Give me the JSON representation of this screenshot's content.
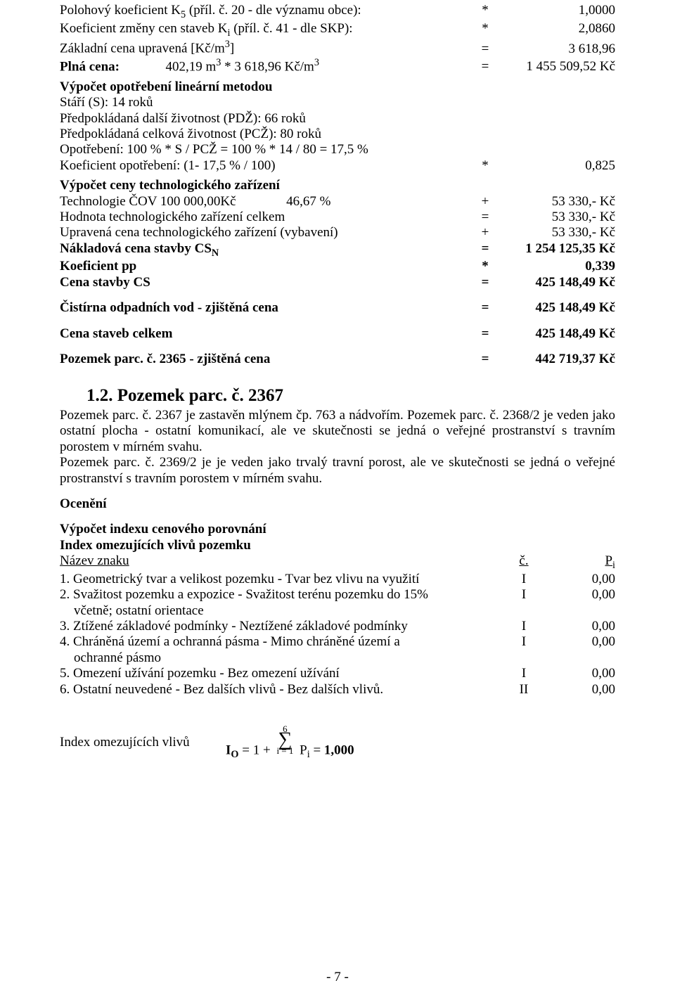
{
  "ln1_left": "Polohový koeficient K",
  "ln1_sub": "5",
  "ln1_left2": " (příl. č. 20 - dle významu obce):",
  "ln1_op": "*",
  "ln1_val": "1,0000",
  "ln2_left": "Koeficient změny cen staveb K",
  "ln2_sub": "i",
  "ln2_left2": " (příl. č. 41 - dle SKP):",
  "ln2_op": "*",
  "ln2_val": "2,0860",
  "ln3_left": "Základní cena upravená [Kč/m",
  "ln3_sup": "3",
  "ln3_left2": "]",
  "ln3_op": "=",
  "ln3_val": "3 618,96",
  "ln4_left_a": "Plná cena:",
  "ln4_left_b": "402,19 m",
  "ln4_sup1": "3",
  "ln4_left_c": " * 3 618,96 Kč/m",
  "ln4_sup2": "3",
  "ln4_op": "=",
  "ln4_val": "1 455 509,52 Kč",
  "sec1_title": "Výpočet opotřebení lineární metodou",
  "s1_l1": "Stáří (S): 14 roků",
  "s1_l2": "Předpokládaná další životnost (PDŽ): 66 roků",
  "s1_l3": "Předpokládaná celková životnost (PCŽ): 80 roků",
  "s1_l4": "Opotřebení: 100 % * S / PCŽ = 100 % * 14 / 80 = 17,5 %",
  "s1_l5_left": "Koeficient opotřebení: (1- 17,5 % / 100)",
  "s1_l5_op": "*",
  "s1_l5_val": "0,825",
  "sec2_title": "Výpočet ceny technologického zařízení",
  "s2_r1_a": "Technologie ČOV   100 000,00Kč",
  "s2_r1_b": "46,67 %",
  "s2_r1_op": "+",
  "s2_r1_val": "53 330,- Kč",
  "s2_r2_left": "Hodnota technologického zařízení celkem",
  "s2_r2_op": "=",
  "s2_r2_val": "53 330,- Kč",
  "s2_r3_left": "Upravená cena technologického zařízení (vybavení)",
  "s2_r3_op": "+",
  "s2_r3_val": "53 330,- Kč",
  "s2_r4_left_a": "Nákladová cena stavby CS",
  "s2_r4_sub": "N",
  "s2_r4_op": "=",
  "s2_r4_val": "1 254 125,35 Kč",
  "s2_r5_left": "Koeficient pp",
  "s2_r5_op": "*",
  "s2_r5_val": "0,339",
  "s2_r6_left": "Cena stavby CS",
  "s2_r6_op": "=",
  "s2_r6_val": "425 148,49 Kč",
  "s2_r7_left": "Čistírna odpadních vod - zjištěná cena",
  "s2_r7_op": "=",
  "s2_r7_val": "425 148,49 Kč",
  "s2_r8_left": "Cena staveb celkem",
  "s2_r8_op": "=",
  "s2_r8_val": "425 148,49 Kč",
  "s2_r9_left": "Pozemek parc. č. 2365 - zjištěná cena",
  "s2_r9_op": "=",
  "s2_r9_val": "442 719,37 Kč",
  "h2_title": "1.2. Pozemek parc. č. 2367",
  "para1": "Pozemek parc. č. 2367 je zastavěn mlýnem čp. 763 a nádvořím. Pozemek parc. č. 2368/2 je veden jako ostatní plocha - ostatní komunikací, ale ve skutečnosti se jedná o veřejné prostranství s travním porostem v mírném svahu.",
  "para2": "Pozemek parc. č. 2369/2 je je veden jako trvalý travní porost, ale ve skutečnosti se jedná o veřejné prostranství s travním porostem v mírném svahu.",
  "oceneni": "Ocenění",
  "idx_title": "Výpočet indexu cenového porovnání",
  "idx_sub": "Index omezujících vlivů pozemku",
  "idx_h_left": "Název znaku",
  "idx_h_mid": "č.",
  "idx_h_val_a": "P",
  "idx_h_val_sub": "i",
  "idx_rows": [
    {
      "l": "1. Geometrický tvar a velikost pozemku - Tvar bez vlivu na využití",
      "m": "I",
      "v": "0,00"
    },
    {
      "l": "2. Svažitost pozemku a expozice - Svažitost terénu pozemku do 15%\n    včetně; ostatní orientace",
      "m": "I",
      "v": "0,00"
    },
    {
      "l": "3. Ztížené základové podmínky - Neztížené základové podmínky",
      "m": "I",
      "v": "0,00"
    },
    {
      "l": "4. Chráněná území a ochranná pásma - Mimo chráněné území a\n    ochranné pásmo",
      "m": "I",
      "v": "0,00"
    },
    {
      "l": "5. Omezení užívání pozemku - Bez omezení užívání",
      "m": "I",
      "v": "0,00"
    },
    {
      "l": "6. Ostatní neuvedené - Bez dalších vlivů - Bez dalších vlivů.",
      "m": "II",
      "v": "0,00"
    }
  ],
  "formula_label": "Index omezujících vlivů",
  "formula_eq_a": "I",
  "formula_eq_sub": "O",
  "formula_eq_b": " = 1 + ",
  "formula_eq_c": " P",
  "formula_eq_sub2": "i",
  "formula_eq_d": " = ",
  "formula_eq_res": "1,000",
  "sigma_top": "6",
  "sigma_bot": "i = 1",
  "pagenum": "- 7 -"
}
